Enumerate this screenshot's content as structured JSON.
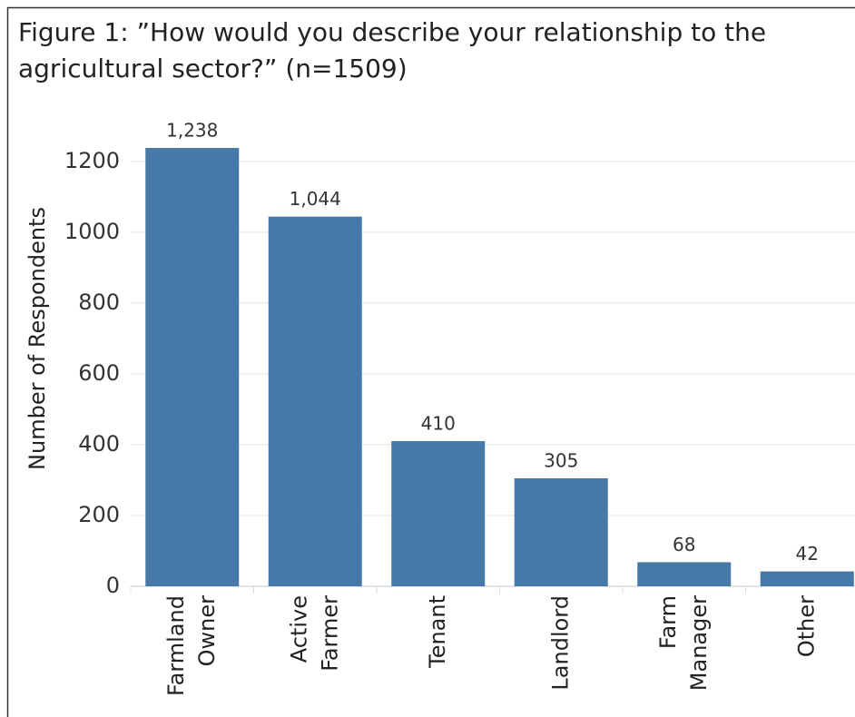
{
  "chart_data": {
    "type": "bar",
    "title": [
      "Figure 1: ”How would you describe your relationship to the",
      "agricultural sector?” (n=1509)"
    ],
    "y_label": "Number of Respondents",
    "categories": [
      [
        "Farmland",
        "Owner"
      ],
      [
        "Active",
        "Farmer"
      ],
      [
        "Tenant"
      ],
      [
        "Landlord"
      ],
      [
        "Farm",
        "Manager"
      ],
      [
        "Other"
      ]
    ],
    "values": [
      1238,
      1044,
      410,
      305,
      68,
      42
    ],
    "value_labels": [
      "1,238",
      "1,044",
      "410",
      "305",
      "68",
      "42"
    ],
    "color": "#4679a8",
    "ylim": [
      0,
      1320
    ],
    "yticks": [
      0,
      200,
      400,
      600,
      800,
      1000,
      1200
    ],
    "grid": true
  }
}
